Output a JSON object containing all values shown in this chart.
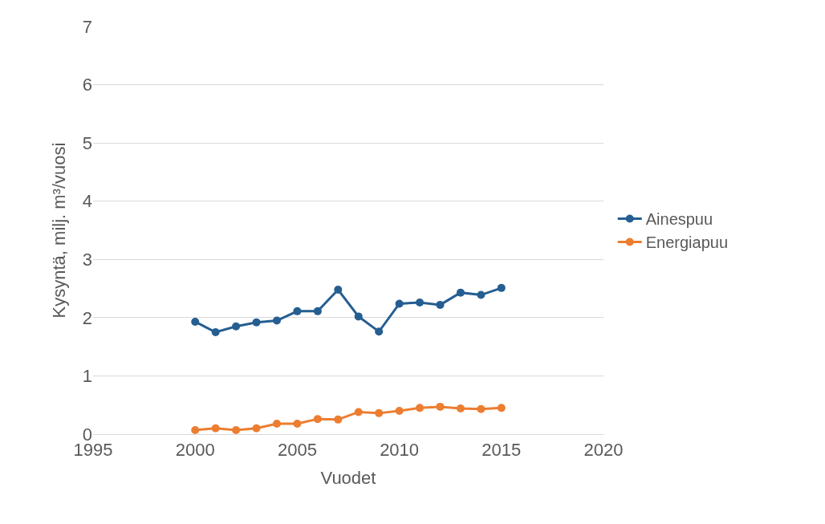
{
  "chart_data": {
    "type": "line",
    "xlabel": "Vuodet",
    "ylabel": "Kysyntä, milj. m³/vuosi",
    "x": [
      2000,
      2001,
      2002,
      2003,
      2004,
      2005,
      2006,
      2007,
      2008,
      2009,
      2010,
      2011,
      2012,
      2013,
      2014,
      2015
    ],
    "series": [
      {
        "name": "Ainespuu",
        "color": "#255e91",
        "values": [
          1.93,
          1.75,
          1.85,
          1.92,
          1.95,
          2.11,
          2.11,
          2.48,
          2.02,
          1.76,
          2.24,
          2.26,
          2.22,
          2.43,
          2.39,
          2.51
        ]
      },
      {
        "name": "Energiapuu",
        "color": "#ed7d31",
        "values": [
          0.07,
          0.1,
          0.07,
          0.1,
          0.18,
          0.18,
          0.26,
          0.25,
          0.38,
          0.36,
          0.4,
          0.45,
          0.47,
          0.44,
          0.43,
          0.45
        ]
      }
    ],
    "xlim": [
      1995,
      2020
    ],
    "xticks": [
      1995,
      2000,
      2005,
      2010,
      2015,
      2020
    ],
    "ylim": [
      0,
      7
    ],
    "yticks": [
      0,
      1,
      2,
      3,
      4,
      5,
      6,
      7
    ],
    "grid": "y",
    "legend": "right",
    "marker": "circle",
    "line_style": "solid"
  }
}
